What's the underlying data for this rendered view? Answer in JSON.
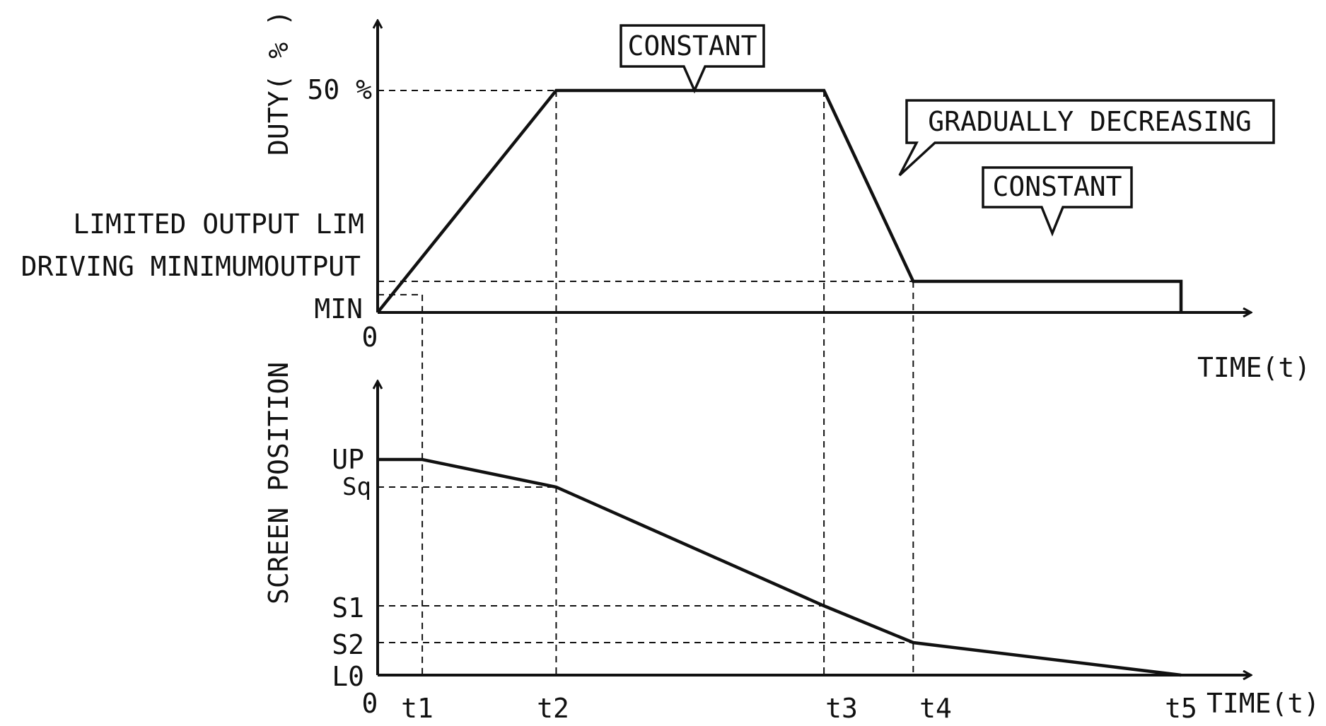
{
  "chart_data": [
    {
      "type": "line",
      "ylabel": "DUTY( % )",
      "xlabel": "TIME(t)",
      "origin_label": "0",
      "y_tick_labels": [
        "50 %",
        "LIMITED OUTPUT LIM",
        "DRIVING MINIMUMOUTPUT",
        "MIN"
      ],
      "y_levels": {
        "zero": 0,
        "driving_minimum_output": 0.04,
        "lim": 0.07,
        "fifty": 0.5
      },
      "time_points": {
        "t1": 1,
        "t2": 4,
        "t3": 10,
        "t4": 12,
        "t5": 18
      },
      "series": [
        {
          "points": [
            {
              "t": 0,
              "duty": 0
            },
            {
              "t": 4,
              "duty": 0.5
            },
            {
              "t": 10,
              "duty": 0.5
            },
            {
              "t": 12,
              "duty": 0.07
            },
            {
              "t": 18,
              "duty": 0.07
            },
            {
              "t": 18,
              "duty": 0
            }
          ]
        }
      ],
      "annotations": [
        "CONSTANT",
        "GRADUALLY DECREASING",
        "CONSTANT"
      ]
    },
    {
      "type": "line",
      "ylabel": "SCREEN POSITION",
      "xlabel": "TIME(t)",
      "origin_label": "0",
      "x_tick_labels": [
        "t1",
        "t2",
        "t3",
        "t4",
        "t5"
      ],
      "y_tick_labels": [
        "UP",
        "Sq",
        "S1",
        "S2",
        "L0"
      ],
      "series": [
        {
          "points": [
            {
              "t": 0,
              "position": "UP"
            },
            {
              "t": 1,
              "position": "UP"
            },
            {
              "t": 4,
              "position": "Sq"
            },
            {
              "t": 10,
              "position": "S1"
            },
            {
              "t": 12,
              "position": "S2"
            },
            {
              "t": 18,
              "position": "L0"
            }
          ]
        }
      ]
    }
  ]
}
